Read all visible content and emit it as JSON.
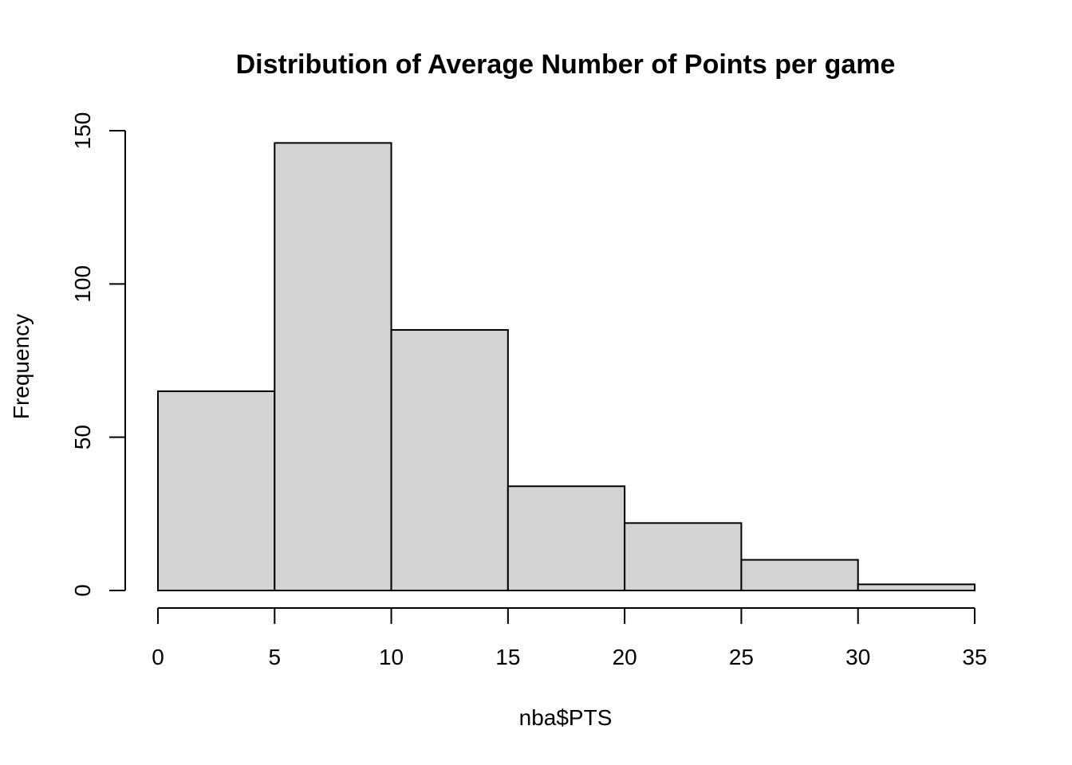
{
  "chart_data": {
    "type": "bar",
    "title": "Distribution of Average Number of Points per game",
    "xlabel": "nba$PTS",
    "ylabel": "Frequency",
    "bins": [
      {
        "start": 0,
        "end": 5,
        "count": 65
      },
      {
        "start": 5,
        "end": 10,
        "count": 146
      },
      {
        "start": 10,
        "end": 15,
        "count": 85
      },
      {
        "start": 15,
        "end": 20,
        "count": 34
      },
      {
        "start": 20,
        "end": 25,
        "count": 22
      },
      {
        "start": 25,
        "end": 30,
        "count": 10
      },
      {
        "start": 30,
        "end": 35,
        "count": 2
      }
    ],
    "xlim": [
      0,
      35
    ],
    "ylim": [
      0,
      150
    ],
    "x_ticks": [
      "0",
      "5",
      "10",
      "15",
      "20",
      "25",
      "30",
      "35"
    ],
    "y_ticks": [
      "0",
      "50",
      "100",
      "150"
    ],
    "bar_color": "#d3d3d3",
    "edge_color": "#000000",
    "grid": false
  }
}
